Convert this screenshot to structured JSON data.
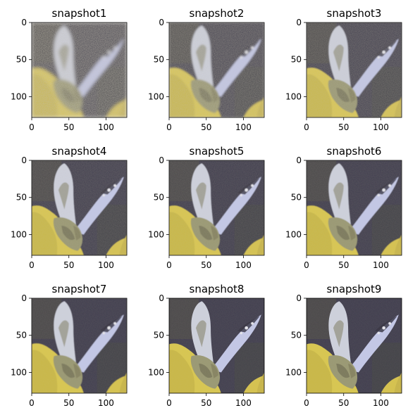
{
  "chart_data": [
    {
      "type": "image",
      "title": "snapshot1",
      "xticks": [
        0,
        50,
        100
      ],
      "yticks": [
        0,
        50,
        100
      ],
      "xlim": [
        0,
        128
      ],
      "ylim": [
        128,
        0
      ],
      "blur": 2.4,
      "noise": 0.55
    },
    {
      "type": "image",
      "title": "snapshot2",
      "xticks": [
        0,
        50,
        100
      ],
      "yticks": [
        0,
        50,
        100
      ],
      "xlim": [
        0,
        128
      ],
      "ylim": [
        128,
        0
      ],
      "blur": 1.2,
      "noise": 0.35
    },
    {
      "type": "image",
      "title": "snapshot3",
      "xticks": [
        0,
        50,
        100
      ],
      "yticks": [
        0,
        50,
        100
      ],
      "xlim": [
        0,
        128
      ],
      "ylim": [
        128,
        0
      ],
      "blur": 0.9,
      "noise": 0.25
    },
    {
      "type": "image",
      "title": "snapshot4",
      "xticks": [
        0,
        50,
        100
      ],
      "yticks": [
        0,
        50,
        100
      ],
      "xlim": [
        0,
        128
      ],
      "ylim": [
        128,
        0
      ],
      "blur": 0.6,
      "noise": 0.15
    },
    {
      "type": "image",
      "title": "snapshot5",
      "xticks": [
        0,
        50,
        100
      ],
      "yticks": [
        0,
        50,
        100
      ],
      "xlim": [
        0,
        128
      ],
      "ylim": [
        128,
        0
      ],
      "blur": 0.5,
      "noise": 0.12
    },
    {
      "type": "image",
      "title": "snapshot6",
      "xticks": [
        0,
        50,
        100
      ],
      "yticks": [
        0,
        50,
        100
      ],
      "xlim": [
        0,
        128
      ],
      "ylim": [
        128,
        0
      ],
      "blur": 0.45,
      "noise": 0.1
    },
    {
      "type": "image",
      "title": "snapshot7",
      "xticks": [
        0,
        50,
        100
      ],
      "yticks": [
        0,
        50,
        100
      ],
      "xlim": [
        0,
        128
      ],
      "ylim": [
        128,
        0
      ],
      "blur": 0.4,
      "noise": 0.08
    },
    {
      "type": "image",
      "title": "snapshot8",
      "xticks": [
        0,
        50,
        100
      ],
      "yticks": [
        0,
        50,
        100
      ],
      "xlim": [
        0,
        128
      ],
      "ylim": [
        128,
        0
      ],
      "blur": 0.35,
      "noise": 0.07
    },
    {
      "type": "image",
      "title": "snapshot9",
      "xticks": [
        0,
        50,
        100
      ],
      "yticks": [
        0,
        50,
        100
      ],
      "xlim": [
        0,
        128
      ],
      "ylim": [
        128,
        0
      ],
      "blur": 0.3,
      "noise": 0.06
    }
  ],
  "colors": {
    "background_dark": "#3b3950",
    "flower_yellow": "#d8c64e",
    "wing_light": "#c5c8e0",
    "body_olive": "#7d7a58"
  }
}
